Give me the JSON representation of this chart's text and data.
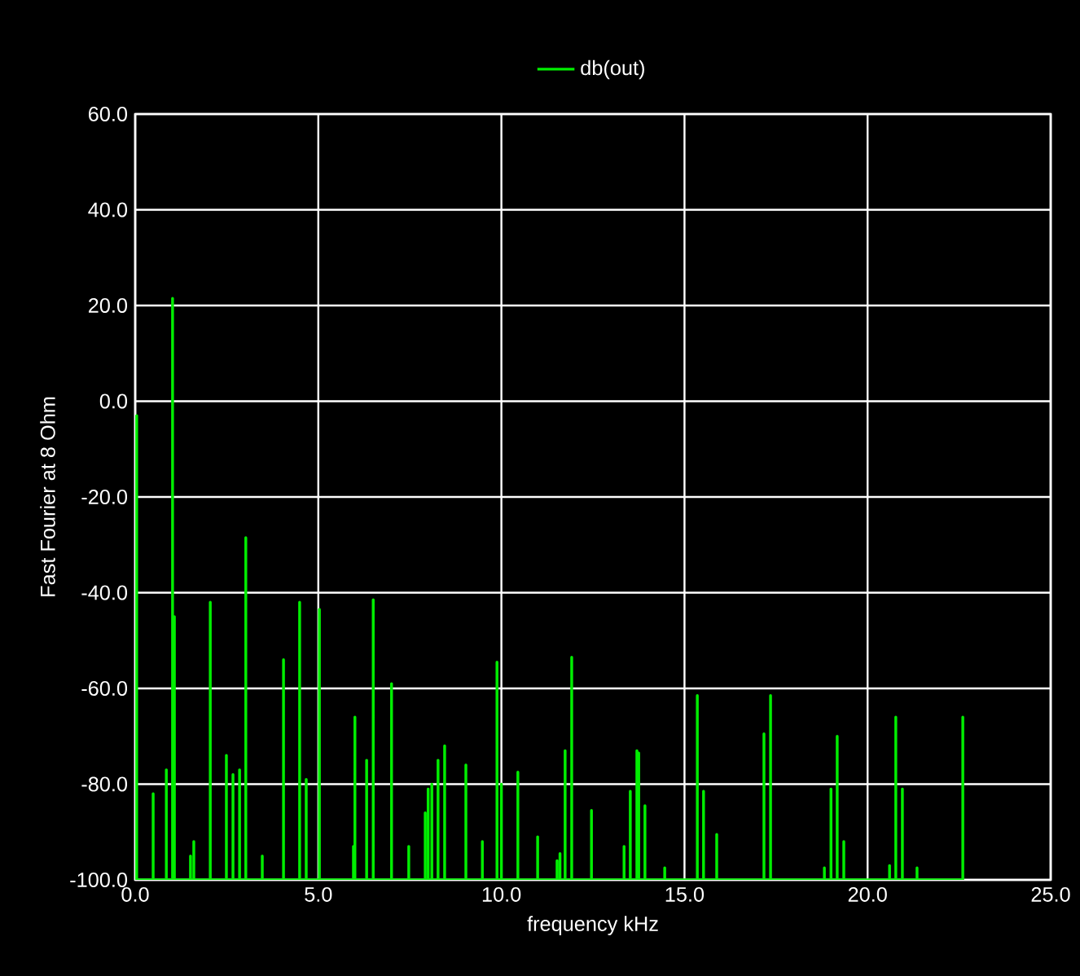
{
  "chart_data": {
    "type": "line",
    "xlabel": "frequency kHz",
    "ylabel": "Fast Fourier at 8 Ohm",
    "x": [
      0.04,
      0.04,
      0.04,
      0.49,
      0.49,
      0.49,
      0.85,
      0.85,
      0.85,
      1.02,
      1.02,
      1.02,
      1.07,
      1.07,
      1.07,
      1.51,
      1.51,
      1.51,
      1.6,
      1.6,
      1.6,
      2.05,
      2.05,
      2.05,
      2.49,
      2.49,
      2.49,
      2.67,
      2.67,
      2.67,
      2.85,
      2.85,
      2.85,
      3.02,
      3.02,
      3.02,
      3.47,
      3.47,
      3.47,
      4.05,
      4.05,
      4.05,
      4.49,
      4.49,
      4.49,
      4.67,
      4.67,
      4.67,
      5.03,
      5.03,
      5.03,
      5.96,
      5.96,
      5.96,
      6.0,
      6.0,
      6.0,
      6.32,
      6.32,
      6.32,
      6.5,
      6.5,
      6.5,
      7.0,
      7.0,
      7.0,
      7.47,
      7.47,
      7.47,
      7.92,
      7.92,
      7.92,
      8.0,
      8.0,
      8.0,
      8.1,
      8.1,
      8.1,
      8.27,
      8.27,
      8.27,
      8.45,
      8.45,
      8.45,
      9.03,
      9.03,
      9.03,
      9.48,
      9.48,
      9.48,
      9.88,
      9.88,
      9.88,
      10.0,
      10.0,
      10.0,
      10.45,
      10.45,
      10.45,
      10.99,
      10.99,
      10.99,
      11.52,
      11.52,
      11.52,
      11.6,
      11.6,
      11.6,
      11.74,
      11.74,
      11.74,
      11.92,
      11.92,
      11.92,
      12.46,
      12.46,
      12.46,
      13.35,
      13.35,
      13.35,
      13.52,
      13.52,
      13.52,
      13.7,
      13.7,
      13.7,
      13.75,
      13.75,
      13.75,
      13.92,
      13.92,
      13.92,
      14.46,
      14.46,
      14.46,
      15.35,
      15.35,
      15.35,
      15.52,
      15.52,
      15.52,
      15.88,
      15.88,
      15.88,
      17.17,
      17.17,
      17.17,
      17.35,
      17.35,
      17.35,
      18.82,
      18.82,
      18.82,
      19.0,
      19.0,
      19.0,
      19.17,
      19.17,
      19.17,
      19.35,
      19.35,
      19.35,
      20.6,
      20.6,
      20.6,
      20.77,
      20.77,
      20.77,
      20.95,
      20.95,
      20.95,
      21.35,
      21.35,
      21.35,
      22.6,
      22.6,
      22.6
    ],
    "series": [
      {
        "name": "db(out)",
        "color": "#00ee00",
        "values": [
          -100,
          -3,
          -100,
          -100,
          -82,
          -100,
          -100,
          -77,
          -100,
          -100,
          21.5,
          -100,
          -100,
          -45,
          -100,
          -100,
          -95,
          -100,
          -100,
          -92,
          -100,
          -100,
          -42,
          -100,
          -100,
          -74,
          -100,
          -100,
          -78,
          -100,
          -100,
          -77,
          -100,
          -100,
          -28.5,
          -100,
          -100,
          -95,
          -100,
          -100,
          -54,
          -100,
          -100,
          -42,
          -100,
          -100,
          -79,
          -100,
          -100,
          -43.5,
          -100,
          -100,
          -93,
          -100,
          -100,
          -66,
          -100,
          -100,
          -75,
          -100,
          -100,
          -41.5,
          -100,
          -100,
          -59,
          -100,
          -100,
          -93,
          -100,
          -100,
          -86,
          -100,
          -100,
          -81,
          -100,
          -100,
          -80,
          -100,
          -100,
          -75,
          -100,
          -100,
          -72,
          -100,
          -100,
          -76,
          -100,
          -100,
          -92,
          -100,
          -100,
          -54.5,
          -100,
          -100,
          -80,
          -100,
          -100,
          -77.5,
          -100,
          -100,
          -91,
          -100,
          -100,
          -96,
          -100,
          -100,
          -94.5,
          -100,
          -100,
          -73,
          -100,
          -100,
          -53.5,
          -100,
          -100,
          -85.5,
          -100,
          -100,
          -93,
          -100,
          -100,
          -81.5,
          -100,
          -100,
          -73,
          -100,
          -100,
          -73.5,
          -100,
          -100,
          -84.5,
          -100,
          -100,
          -97.5,
          -100,
          -100,
          -61.5,
          -100,
          -100,
          -81.5,
          -100,
          -100,
          -90.5,
          -100,
          -100,
          -69.5,
          -100,
          -100,
          -61.5,
          -100,
          -100,
          -97.5,
          -100,
          -100,
          -81,
          -100,
          -100,
          -70,
          -100,
          -100,
          -92,
          -100,
          -100,
          -97,
          -100,
          -100,
          -66,
          -100,
          -100,
          -81,
          -100,
          -100,
          -97.5,
          -100,
          -100,
          -66,
          -100
        ]
      }
    ],
    "xlim": [
      0,
      25
    ],
    "ylim": [
      -100,
      60
    ],
    "xticks": [
      {
        "value": 0,
        "label": "0.0"
      },
      {
        "value": 5,
        "label": "5.0"
      },
      {
        "value": 10,
        "label": "10.0"
      },
      {
        "value": 15,
        "label": "15.0"
      },
      {
        "value": 20,
        "label": "20.0"
      },
      {
        "value": 25,
        "label": "25.0"
      }
    ],
    "yticks": [
      {
        "value": -100,
        "label": "-100.0"
      },
      {
        "value": -80,
        "label": "-80.0"
      },
      {
        "value": -60,
        "label": "-60.0"
      },
      {
        "value": -40,
        "label": "-40.0"
      },
      {
        "value": -20,
        "label": "-20.0"
      },
      {
        "value": 0,
        "label": "0.0"
      },
      {
        "value": 20,
        "label": "20.0"
      },
      {
        "value": 40,
        "label": "40.0"
      },
      {
        "value": 60,
        "label": "60.0"
      }
    ],
    "grid": true,
    "legend": "top"
  }
}
